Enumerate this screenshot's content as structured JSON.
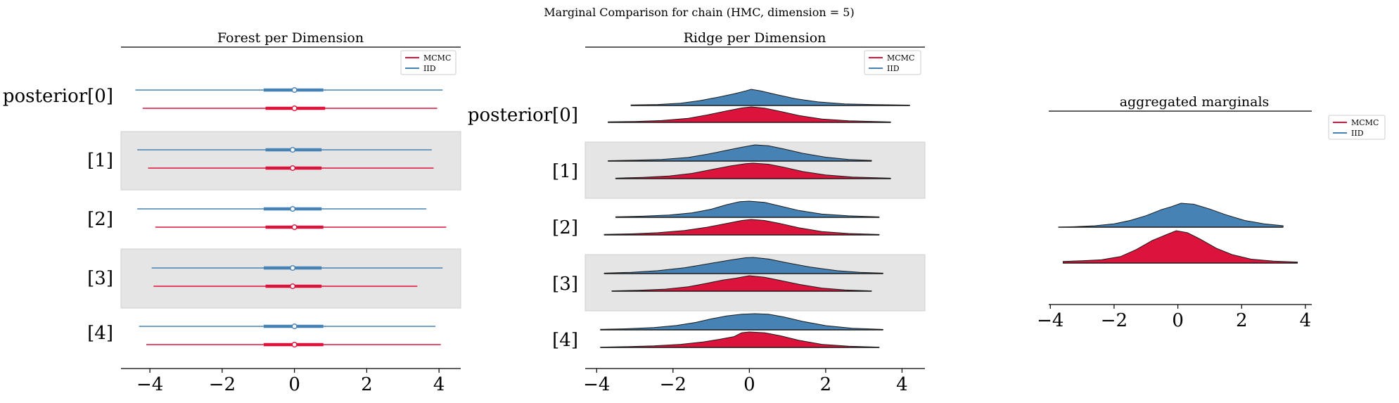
{
  "figure": {
    "suptitle": "Marginal Comparison for chain (HMC, dimension = 5)"
  },
  "colors": {
    "mcmc": "#dc143c",
    "iid": "#4682b4",
    "shade": "#e5e5e5"
  },
  "chart_data": [
    {
      "type": "forest",
      "title": "Forest per Dimension",
      "labels": [
        "posterior[0]",
        "[1]",
        "[2]",
        "[3]",
        "[4]"
      ],
      "x_ticks": [
        "−4",
        "−2",
        "0",
        "2",
        "4"
      ],
      "xlim": [
        -4.8,
        4.6
      ],
      "legend": {
        "position": "top-right",
        "entries": [
          "MCMC",
          "IID"
        ]
      },
      "series": [
        {
          "name": "IID",
          "intervals": [
            {
              "low": -4.4,
              "q1": -0.85,
              "median": 0.0,
              "q3": 0.8,
              "high": 4.1
            },
            {
              "low": -4.35,
              "q1": -0.8,
              "median": -0.05,
              "q3": 0.75,
              "high": 3.8
            },
            {
              "low": -4.35,
              "q1": -0.85,
              "median": -0.05,
              "q3": 0.75,
              "high": 3.65
            },
            {
              "low": -3.95,
              "q1": -0.85,
              "median": -0.05,
              "q3": 0.75,
              "high": 4.1
            },
            {
              "low": -4.3,
              "q1": -0.85,
              "median": 0.0,
              "q3": 0.8,
              "high": 3.9
            }
          ]
        },
        {
          "name": "MCMC",
          "intervals": [
            {
              "low": -4.2,
              "q1": -0.8,
              "median": 0.0,
              "q3": 0.85,
              "high": 3.95
            },
            {
              "low": -4.05,
              "q1": -0.8,
              "median": -0.05,
              "q3": 0.75,
              "high": 3.85
            },
            {
              "low": -3.85,
              "q1": -0.8,
              "median": 0.0,
              "q3": 0.8,
              "high": 4.2
            },
            {
              "low": -3.9,
              "q1": -0.8,
              "median": -0.05,
              "q3": 0.75,
              "high": 3.4
            },
            {
              "low": -4.1,
              "q1": -0.85,
              "median": 0.0,
              "q3": 0.8,
              "high": 4.05
            }
          ]
        }
      ]
    },
    {
      "type": "ridgeline",
      "title": "Ridge per Dimension",
      "labels": [
        "posterior[0]",
        "[1]",
        "[2]",
        "[3]",
        "[4]"
      ],
      "x_ticks": [
        "−4",
        "−2",
        "0",
        "2",
        "4"
      ],
      "xlim": [
        -4.3,
        4.6
      ],
      "legend": {
        "position": "top-right",
        "entries": [
          "MCMC",
          "IID"
        ]
      },
      "series": [
        {
          "name": "IID",
          "curves": [
            {
              "xmin": -3.1,
              "xmax": 4.2,
              "points": [
                [
                  -3.1,
                  0.03
                ],
                [
                  -2.4,
                  0.06
                ],
                [
                  -1.8,
                  0.14
                ],
                [
                  -1.3,
                  0.3
                ],
                [
                  -0.8,
                  0.52
                ],
                [
                  -0.4,
                  0.72
                ],
                [
                  -0.1,
                  0.9
                ],
                [
                  0.05,
                  1.0
                ],
                [
                  0.3,
                  0.9
                ],
                [
                  0.7,
                  0.68
                ],
                [
                  1.2,
                  0.42
                ],
                [
                  1.8,
                  0.22
                ],
                [
                  2.5,
                  0.1
                ],
                [
                  3.3,
                  0.05
                ],
                [
                  4.2,
                  0.02
                ]
              ]
            },
            {
              "xmin": -3.7,
              "xmax": 3.2,
              "points": [
                [
                  -3.7,
                  0.02
                ],
                [
                  -3.0,
                  0.05
                ],
                [
                  -2.3,
                  0.1
                ],
                [
                  -1.6,
                  0.22
                ],
                [
                  -1.1,
                  0.42
                ],
                [
                  -0.6,
                  0.66
                ],
                [
                  -0.2,
                  0.85
                ],
                [
                  0.15,
                  1.0
                ],
                [
                  0.5,
                  0.95
                ],
                [
                  0.9,
                  0.75
                ],
                [
                  1.4,
                  0.48
                ],
                [
                  2.0,
                  0.24
                ],
                [
                  2.6,
                  0.1
                ],
                [
                  3.2,
                  0.04
                ]
              ]
            },
            {
              "xmin": -3.5,
              "xmax": 3.4,
              "points": [
                [
                  -3.5,
                  0.03
                ],
                [
                  -2.8,
                  0.07
                ],
                [
                  -2.1,
                  0.14
                ],
                [
                  -1.5,
                  0.28
                ],
                [
                  -1.0,
                  0.5
                ],
                [
                  -0.6,
                  0.78
                ],
                [
                  -0.25,
                  0.97
                ],
                [
                  0.0,
                  1.0
                ],
                [
                  0.4,
                  0.92
                ],
                [
                  0.8,
                  0.7
                ],
                [
                  1.3,
                  0.42
                ],
                [
                  1.9,
                  0.2
                ],
                [
                  2.6,
                  0.09
                ],
                [
                  3.4,
                  0.03
                ]
              ]
            },
            {
              "xmin": -3.8,
              "xmax": 3.5,
              "points": [
                [
                  -3.8,
                  0.03
                ],
                [
                  -3.1,
                  0.08
                ],
                [
                  -2.4,
                  0.18
                ],
                [
                  -1.7,
                  0.36
                ],
                [
                  -1.1,
                  0.6
                ],
                [
                  -0.5,
                  0.84
                ],
                [
                  -0.1,
                  0.98
                ],
                [
                  0.1,
                  1.0
                ],
                [
                  0.5,
                  0.9
                ],
                [
                  1.0,
                  0.66
                ],
                [
                  1.6,
                  0.4
                ],
                [
                  2.3,
                  0.18
                ],
                [
                  2.9,
                  0.08
                ],
                [
                  3.5,
                  0.03
                ]
              ]
            },
            {
              "xmin": -3.9,
              "xmax": 3.5,
              "points": [
                [
                  -3.9,
                  0.03
                ],
                [
                  -3.2,
                  0.07
                ],
                [
                  -2.5,
                  0.14
                ],
                [
                  -1.9,
                  0.27
                ],
                [
                  -1.4,
                  0.46
                ],
                [
                  -1.0,
                  0.68
                ],
                [
                  -0.6,
                  0.86
                ],
                [
                  -0.2,
                  0.97
                ],
                [
                  0.15,
                  1.0
                ],
                [
                  0.5,
                  0.97
                ],
                [
                  0.9,
                  0.8
                ],
                [
                  1.4,
                  0.52
                ],
                [
                  2.0,
                  0.26
                ],
                [
                  2.7,
                  0.1
                ],
                [
                  3.5,
                  0.03
                ]
              ]
            }
          ]
        },
        {
          "name": "MCMC",
          "curves": [
            {
              "xmin": -3.7,
              "xmax": 3.7,
              "points": [
                [
                  -3.7,
                  0.03
                ],
                [
                  -3.0,
                  0.06
                ],
                [
                  -2.3,
                  0.12
                ],
                [
                  -1.6,
                  0.26
                ],
                [
                  -1.1,
                  0.48
                ],
                [
                  -0.6,
                  0.74
                ],
                [
                  -0.2,
                  0.93
                ],
                [
                  0.05,
                  1.0
                ],
                [
                  0.4,
                  0.92
                ],
                [
                  0.8,
                  0.72
                ],
                [
                  1.3,
                  0.44
                ],
                [
                  1.9,
                  0.22
                ],
                [
                  2.6,
                  0.1
                ],
                [
                  3.7,
                  0.03
                ]
              ]
            },
            {
              "xmin": -3.5,
              "xmax": 3.7,
              "points": [
                [
                  -3.5,
                  0.03
                ],
                [
                  -2.8,
                  0.08
                ],
                [
                  -2.1,
                  0.17
                ],
                [
                  -1.5,
                  0.34
                ],
                [
                  -1.0,
                  0.58
                ],
                [
                  -0.5,
                  0.82
                ],
                [
                  -0.1,
                  0.97
                ],
                [
                  0.1,
                  1.0
                ],
                [
                  0.5,
                  0.93
                ],
                [
                  0.9,
                  0.74
                ],
                [
                  1.4,
                  0.46
                ],
                [
                  2.0,
                  0.24
                ],
                [
                  2.7,
                  0.1
                ],
                [
                  3.7,
                  0.03
                ]
              ]
            },
            {
              "xmin": -3.8,
              "xmax": 3.4,
              "points": [
                [
                  -3.8,
                  0.03
                ],
                [
                  -3.1,
                  0.07
                ],
                [
                  -2.4,
                  0.14
                ],
                [
                  -1.7,
                  0.28
                ],
                [
                  -1.1,
                  0.5
                ],
                [
                  -0.6,
                  0.74
                ],
                [
                  -0.2,
                  0.93
                ],
                [
                  0.05,
                  1.0
                ],
                [
                  0.4,
                  0.93
                ],
                [
                  0.8,
                  0.74
                ],
                [
                  1.3,
                  0.46
                ],
                [
                  1.9,
                  0.22
                ],
                [
                  2.6,
                  0.09
                ],
                [
                  3.4,
                  0.03
                ]
              ]
            },
            {
              "xmin": -3.6,
              "xmax": 3.2,
              "points": [
                [
                  -3.6,
                  0.02
                ],
                [
                  -2.9,
                  0.06
                ],
                [
                  -2.2,
                  0.13
                ],
                [
                  -1.6,
                  0.28
                ],
                [
                  -1.1,
                  0.52
                ],
                [
                  -0.7,
                  0.72
                ],
                [
                  -0.35,
                  0.84
                ],
                [
                  0.0,
                  1.0
                ],
                [
                  0.4,
                  0.9
                ],
                [
                  0.8,
                  0.7
                ],
                [
                  1.3,
                  0.44
                ],
                [
                  1.9,
                  0.2
                ],
                [
                  2.5,
                  0.08
                ],
                [
                  3.2,
                  0.02
                ]
              ]
            },
            {
              "xmin": -3.9,
              "xmax": 3.4,
              "points": [
                [
                  -3.9,
                  0.02
                ],
                [
                  -3.2,
                  0.05
                ],
                [
                  -2.5,
                  0.1
                ],
                [
                  -1.8,
                  0.2
                ],
                [
                  -1.2,
                  0.36
                ],
                [
                  -0.8,
                  0.52
                ],
                [
                  -0.4,
                  0.7
                ],
                [
                  -0.2,
                  0.95
                ],
                [
                  0.0,
                  1.0
                ],
                [
                  0.4,
                  0.95
                ],
                [
                  0.8,
                  0.76
                ],
                [
                  1.3,
                  0.46
                ],
                [
                  1.9,
                  0.2
                ],
                [
                  2.6,
                  0.08
                ],
                [
                  3.4,
                  0.02
                ]
              ]
            }
          ]
        }
      ]
    },
    {
      "type": "ridgeline",
      "title": "aggregated marginals",
      "labels": [],
      "x_ticks": [
        "−4",
        "−2",
        "0",
        "2",
        "4"
      ],
      "xlim": [
        -4.05,
        4.2
      ],
      "legend": {
        "position": "top-right",
        "entries": [
          "MCMC",
          "IID"
        ]
      },
      "series": [
        {
          "name": "IID",
          "curves": [
            {
              "xmin": -3.75,
              "xmax": 3.3,
              "points": [
                [
                  -3.75,
                  0.0
                ],
                [
                  -3.2,
                  0.02
                ],
                [
                  -2.6,
                  0.06
                ],
                [
                  -2.0,
                  0.14
                ],
                [
                  -1.5,
                  0.28
                ],
                [
                  -1.0,
                  0.48
                ],
                [
                  -0.5,
                  0.74
                ],
                [
                  -0.2,
                  0.86
                ],
                [
                  0.1,
                  1.0
                ],
                [
                  0.5,
                  0.96
                ],
                [
                  1.0,
                  0.76
                ],
                [
                  1.5,
                  0.52
                ],
                [
                  2.1,
                  0.28
                ],
                [
                  2.7,
                  0.14
                ],
                [
                  3.3,
                  0.06
                ]
              ]
            }
          ]
        },
        {
          "name": "MCMC",
          "curves": [
            {
              "xmin": -3.6,
              "xmax": 3.75,
              "points": [
                [
                  -3.6,
                  0.05
                ],
                [
                  -3.0,
                  0.07
                ],
                [
                  -2.4,
                  0.1
                ],
                [
                  -1.8,
                  0.2
                ],
                [
                  -1.3,
                  0.42
                ],
                [
                  -0.8,
                  0.7
                ],
                [
                  -0.4,
                  0.86
                ],
                [
                  -0.05,
                  1.0
                ],
                [
                  0.3,
                  0.94
                ],
                [
                  0.7,
                  0.74
                ],
                [
                  1.2,
                  0.46
                ],
                [
                  1.7,
                  0.26
                ],
                [
                  2.3,
                  0.12
                ],
                [
                  3.0,
                  0.06
                ],
                [
                  3.75,
                  0.03
                ]
              ]
            }
          ]
        }
      ]
    }
  ]
}
